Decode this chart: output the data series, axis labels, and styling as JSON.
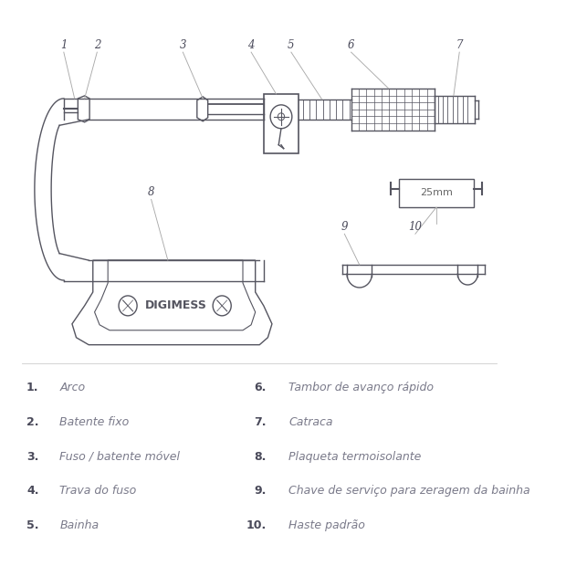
{
  "bg_color": "#ffffff",
  "label_color": "#7a7a8a",
  "number_color": "#4a4a5a",
  "line_color": "#555560",
  "legend_left": [
    {
      "num": "1.",
      "text": "Arco"
    },
    {
      "num": "2.",
      "text": "Batente fixo"
    },
    {
      "num": "3.",
      "text": "Fuso / batente móvel"
    },
    {
      "num": "4.",
      "text": "Trava do fuso"
    },
    {
      "num": "5.",
      "text": "Bainha"
    }
  ],
  "legend_right": [
    {
      "num": "6.",
      "text": "Tambor de avanço rápido"
    },
    {
      "num": "7.",
      "text": "Catraca"
    },
    {
      "num": "8.",
      "text": "Plaqueta termoisolante"
    },
    {
      "num": "9.",
      "text": "Chave de serviço para zeragem da bainha"
    },
    {
      "num": "10.",
      "text": "Haste padrão"
    }
  ],
  "digimess_label": "DIGIMESS",
  "gauge_label": "25mm",
  "font_size_legend": 9,
  "font_size_callout": 8.5
}
